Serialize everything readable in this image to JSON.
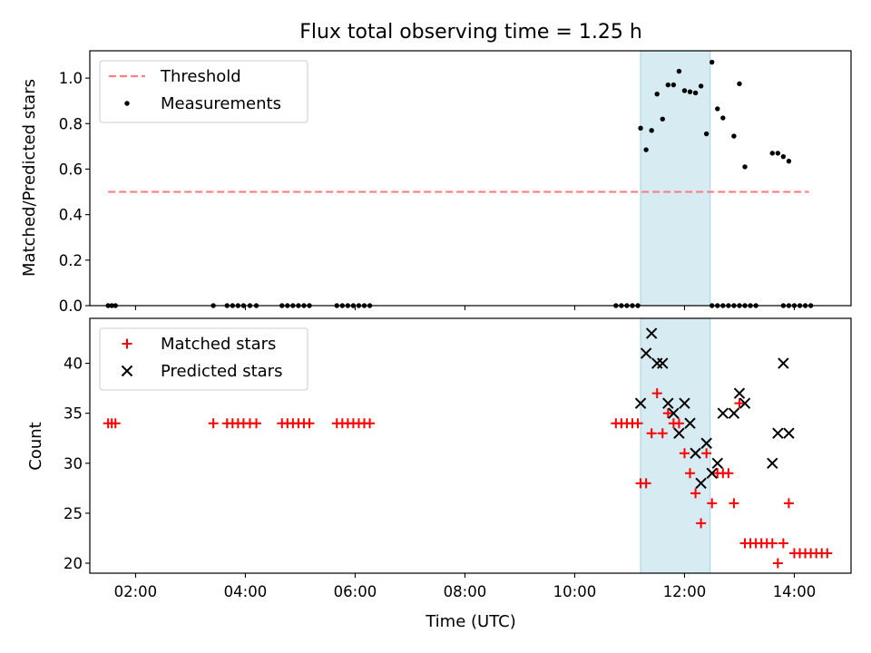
{
  "chart_data": [
    {
      "type": "scatter",
      "title": "Flux total observing time = 1.25 h",
      "xlabel": "",
      "ylabel": "Matched/Predicted stars",
      "xlim": [
        "01:10",
        "15:02"
      ],
      "ylim": [
        0,
        1.12
      ],
      "y_ticks": [
        "0.0",
        "0.2",
        "0.4",
        "0.6",
        "0.8",
        "1.0"
      ],
      "x_ticks": [
        "02:00",
        "04:00",
        "06:00",
        "08:00",
        "10:00",
        "12:00",
        "14:00"
      ],
      "x_tick_labels_shown": false,
      "grid": false,
      "legend_position": "top-left",
      "highlight_span": {
        "x_start": "11:12",
        "x_end": "12:28",
        "color": "#add8e6"
      },
      "threshold": {
        "name": "Threshold",
        "y": 0.5,
        "x_start": "01:30",
        "x_end": "14:16",
        "color": "#ff7f7f",
        "style": "dashed"
      },
      "series": [
        {
          "name": "Measurements",
          "marker": "dot",
          "color": "#000000",
          "points": [
            [
              "01:30",
              0
            ],
            [
              "01:34",
              0
            ],
            [
              "01:38",
              0
            ],
            [
              "03:25",
              0
            ],
            [
              "03:40",
              0
            ],
            [
              "03:46",
              0
            ],
            [
              "03:52",
              0
            ],
            [
              "03:58",
              0
            ],
            [
              "04:05",
              0
            ],
            [
              "04:12",
              0
            ],
            [
              "04:40",
              0
            ],
            [
              "04:46",
              0
            ],
            [
              "04:52",
              0
            ],
            [
              "04:58",
              0
            ],
            [
              "05:04",
              0
            ],
            [
              "05:10",
              0
            ],
            [
              "05:40",
              0
            ],
            [
              "05:46",
              0
            ],
            [
              "05:52",
              0
            ],
            [
              "05:58",
              0
            ],
            [
              "06:04",
              0
            ],
            [
              "06:10",
              0
            ],
            [
              "06:16",
              0
            ],
            [
              "10:45",
              0
            ],
            [
              "10:51",
              0
            ],
            [
              "10:57",
              0
            ],
            [
              "11:03",
              0
            ],
            [
              "11:09",
              0
            ],
            [
              "11:12",
              0.78
            ],
            [
              "11:18",
              0.685
            ],
            [
              "11:24",
              0.77
            ],
            [
              "11:30",
              0.93
            ],
            [
              "11:36",
              0.82
            ],
            [
              "11:42",
              0.97
            ],
            [
              "11:48",
              0.97
            ],
            [
              "11:54",
              1.03
            ],
            [
              "12:00",
              0.945
            ],
            [
              "12:06",
              0.94
            ],
            [
              "12:12",
              0.935
            ],
            [
              "12:18",
              0.965
            ],
            [
              "12:24",
              0.755
            ],
            [
              "12:30",
              1.07
            ],
            [
              "12:36",
              0.865
            ],
            [
              "12:42",
              0.825
            ],
            [
              "12:54",
              0.745
            ],
            [
              "13:00",
              0.975
            ],
            [
              "13:06",
              0.61
            ],
            [
              "13:36",
              0.67
            ],
            [
              "13:42",
              0.67
            ],
            [
              "13:48",
              0.655
            ],
            [
              "13:54",
              0.635
            ],
            [
              "12:30",
              0
            ],
            [
              "12:36",
              0
            ],
            [
              "12:42",
              0
            ],
            [
              "12:48",
              0
            ],
            [
              "12:54",
              0
            ],
            [
              "13:00",
              0
            ],
            [
              "13:06",
              0
            ],
            [
              "13:12",
              0
            ],
            [
              "13:18",
              0
            ],
            [
              "13:48",
              0
            ],
            [
              "13:54",
              0
            ],
            [
              "14:00",
              0
            ],
            [
              "14:06",
              0
            ],
            [
              "14:12",
              0
            ],
            [
              "14:18",
              0
            ]
          ]
        }
      ]
    },
    {
      "type": "scatter",
      "title": "",
      "xlabel": "Time (UTC)",
      "ylabel": "Count",
      "xlim": [
        "01:10",
        "15:02"
      ],
      "ylim": [
        19,
        44.5
      ],
      "y_ticks": [
        "20",
        "25",
        "30",
        "35",
        "40"
      ],
      "x_ticks": [
        "02:00",
        "04:00",
        "06:00",
        "08:00",
        "10:00",
        "12:00",
        "14:00"
      ],
      "x_tick_labels_shown": true,
      "grid": false,
      "legend_position": "top-left",
      "highlight_span": {
        "x_start": "11:12",
        "x_end": "12:28",
        "color": "#add8e6"
      },
      "series": [
        {
          "name": "Matched stars",
          "marker": "plus",
          "color": "#ff0000",
          "points": [
            [
              "01:30",
              34
            ],
            [
              "01:34",
              34
            ],
            [
              "01:38",
              34
            ],
            [
              "03:25",
              34
            ],
            [
              "03:40",
              34
            ],
            [
              "03:46",
              34
            ],
            [
              "03:52",
              34
            ],
            [
              "03:58",
              34
            ],
            [
              "04:05",
              34
            ],
            [
              "04:12",
              34
            ],
            [
              "04:40",
              34
            ],
            [
              "04:46",
              34
            ],
            [
              "04:52",
              34
            ],
            [
              "04:58",
              34
            ],
            [
              "05:04",
              34
            ],
            [
              "05:10",
              34
            ],
            [
              "05:40",
              34
            ],
            [
              "05:46",
              34
            ],
            [
              "05:52",
              34
            ],
            [
              "05:58",
              34
            ],
            [
              "06:04",
              34
            ],
            [
              "06:10",
              34
            ],
            [
              "06:16",
              34
            ],
            [
              "10:45",
              34
            ],
            [
              "10:51",
              34
            ],
            [
              "10:57",
              34
            ],
            [
              "11:03",
              34
            ],
            [
              "11:09",
              34
            ],
            [
              "11:12",
              28
            ],
            [
              "11:18",
              28
            ],
            [
              "11:24",
              33
            ],
            [
              "11:30",
              37
            ],
            [
              "11:36",
              33
            ],
            [
              "11:42",
              35
            ],
            [
              "11:48",
              34
            ],
            [
              "11:54",
              34
            ],
            [
              "12:00",
              31
            ],
            [
              "12:06",
              29
            ],
            [
              "12:12",
              27
            ],
            [
              "12:18",
              24
            ],
            [
              "12:24",
              31
            ],
            [
              "12:30",
              26
            ],
            [
              "12:36",
              29
            ],
            [
              "12:42",
              29
            ],
            [
              "12:48",
              29
            ],
            [
              "12:54",
              26
            ],
            [
              "13:00",
              36
            ],
            [
              "13:06",
              22
            ],
            [
              "13:12",
              22
            ],
            [
              "13:18",
              22
            ],
            [
              "13:24",
              22
            ],
            [
              "13:30",
              22
            ],
            [
              "13:36",
              22
            ],
            [
              "13:42",
              20
            ],
            [
              "13:48",
              22
            ],
            [
              "13:54",
              26
            ],
            [
              "14:00",
              21
            ],
            [
              "14:06",
              21
            ],
            [
              "14:12",
              21
            ],
            [
              "14:18",
              21
            ],
            [
              "14:24",
              21
            ],
            [
              "14:30",
              21
            ],
            [
              "14:36",
              21
            ]
          ]
        },
        {
          "name": "Predicted stars",
          "marker": "x",
          "color": "#000000",
          "points": [
            [
              "11:12",
              36
            ],
            [
              "11:18",
              41
            ],
            [
              "11:24",
              43
            ],
            [
              "11:30",
              40
            ],
            [
              "11:36",
              40
            ],
            [
              "11:42",
              36
            ],
            [
              "11:48",
              35
            ],
            [
              "11:54",
              33
            ],
            [
              "12:00",
              36
            ],
            [
              "12:06",
              34
            ],
            [
              "12:12",
              31
            ],
            [
              "12:18",
              28
            ],
            [
              "12:24",
              32
            ],
            [
              "12:30",
              29
            ],
            [
              "12:36",
              30
            ],
            [
              "12:42",
              35
            ],
            [
              "12:54",
              35
            ],
            [
              "13:00",
              37
            ],
            [
              "13:06",
              36
            ],
            [
              "13:36",
              30
            ],
            [
              "13:42",
              33
            ],
            [
              "13:48",
              40
            ],
            [
              "13:54",
              33
            ]
          ]
        }
      ]
    }
  ]
}
